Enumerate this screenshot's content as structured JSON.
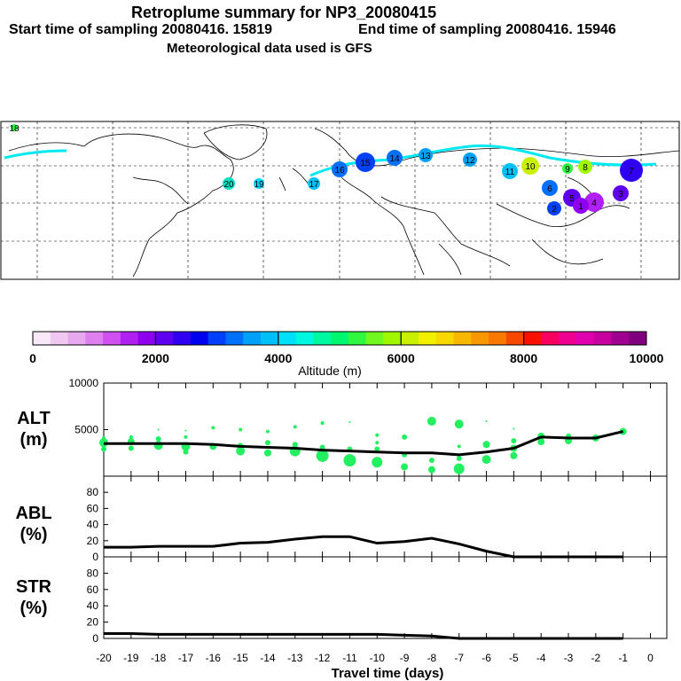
{
  "header": {
    "title": "Retroplume summary for NP3_20080415",
    "start_time": "Start time of sampling 20080416. 15819",
    "end_time": "End time of sampling 20080416. 15946",
    "met_data": "Meteorological data used is GFS"
  },
  "colorbar": {
    "label": "Altitude (m)",
    "ticks": [
      "0",
      "2000",
      "4000",
      "6000",
      "8000",
      "10000"
    ],
    "colors": [
      "#f8e8f8",
      "#f0c8f0",
      "#e8a8f0",
      "#e080f0",
      "#d050f0",
      "#b020f0",
      "#9000f0",
      "#6000f0",
      "#3000f0",
      "#0000f0",
      "#0040f8",
      "#0070f8",
      "#00a0f8",
      "#00c0f8",
      "#00e0f8",
      "#00f8e0",
      "#00f8a0",
      "#00f870",
      "#30f840",
      "#70f820",
      "#a0f800",
      "#c8f000",
      "#f0f000",
      "#f8d800",
      "#f8b800",
      "#f89800",
      "#f87800",
      "#f84800",
      "#f81000",
      "#f80060",
      "#f00090",
      "#e000b0",
      "#c800a0",
      "#a00090",
      "#800080"
    ]
  },
  "map": {
    "labels": [
      "19",
      "20",
      "18",
      "17",
      "16",
      "15",
      "14",
      "13",
      "12",
      "11",
      "10",
      "9",
      "8",
      "7",
      "6",
      "5",
      "4",
      "3",
      "2",
      "1"
    ]
  },
  "chart_data": [
    {
      "type": "scatter",
      "name": "ALT",
      "panel_label": "ALT",
      "panel_unit": "(m)",
      "ylim": [
        0,
        10000
      ],
      "yticks": [
        "10000",
        "5000"
      ],
      "median_line": {
        "x": [
          -20,
          -19,
          -18,
          -17,
          -16,
          -15,
          -14,
          -13,
          -12,
          -11,
          -10,
          -9,
          -8,
          -7,
          -6,
          -5,
          -4,
          -3,
          -2,
          -1
        ],
        "y": [
          3500,
          3500,
          3500,
          3500,
          3400,
          3200,
          3100,
          3000,
          2800,
          2700,
          2600,
          2500,
          2500,
          2300,
          2600,
          3000,
          4200,
          4100,
          4100,
          4800
        ]
      },
      "points": [
        {
          "x": -20,
          "y": 3600,
          "r": 5
        },
        {
          "x": -20,
          "y": 2900,
          "r": 3
        },
        {
          "x": -20,
          "y": 4100,
          "r": 2
        },
        {
          "x": -19,
          "y": 3700,
          "r": 4
        },
        {
          "x": -19,
          "y": 3000,
          "r": 3
        },
        {
          "x": -19,
          "y": 4200,
          "r": 2
        },
        {
          "x": -18,
          "y": 3300,
          "r": 5
        },
        {
          "x": -18,
          "y": 4000,
          "r": 3
        },
        {
          "x": -18,
          "y": 5000,
          "r": 1
        },
        {
          "x": -17,
          "y": 3200,
          "r": 5
        },
        {
          "x": -17,
          "y": 2600,
          "r": 3
        },
        {
          "x": -17,
          "y": 4200,
          "r": 2
        },
        {
          "x": -17,
          "y": 4900,
          "r": 1
        },
        {
          "x": -16,
          "y": 3200,
          "r": 4
        },
        {
          "x": -16,
          "y": 5200,
          "r": 2
        },
        {
          "x": -15,
          "y": 2700,
          "r": 5
        },
        {
          "x": -15,
          "y": 3300,
          "r": 3
        },
        {
          "x": -15,
          "y": 5000,
          "r": 2
        },
        {
          "x": -14,
          "y": 2500,
          "r": 4
        },
        {
          "x": -14,
          "y": 3600,
          "r": 3
        },
        {
          "x": -14,
          "y": 4800,
          "r": 2
        },
        {
          "x": -13,
          "y": 2700,
          "r": 6
        },
        {
          "x": -13,
          "y": 3400,
          "r": 3
        },
        {
          "x": -13,
          "y": 5300,
          "r": 2
        },
        {
          "x": -12,
          "y": 2200,
          "r": 7
        },
        {
          "x": -12,
          "y": 3100,
          "r": 3
        },
        {
          "x": -12,
          "y": 5700,
          "r": 2
        },
        {
          "x": -11,
          "y": 1700,
          "r": 7
        },
        {
          "x": -11,
          "y": 2900,
          "r": 3
        },
        {
          "x": -11,
          "y": 5800,
          "r": 1
        },
        {
          "x": -10,
          "y": 1500,
          "r": 6
        },
        {
          "x": -10,
          "y": 2900,
          "r": 3
        },
        {
          "x": -10,
          "y": 3600,
          "r": 2
        },
        {
          "x": -10,
          "y": 4400,
          "r": 2
        },
        {
          "x": -9,
          "y": 1000,
          "r": 4
        },
        {
          "x": -9,
          "y": 2300,
          "r": 3
        },
        {
          "x": -9,
          "y": 4200,
          "r": 3
        },
        {
          "x": -8,
          "y": 700,
          "r": 4
        },
        {
          "x": -8,
          "y": 1700,
          "r": 3
        },
        {
          "x": -8,
          "y": 5900,
          "r": 5
        },
        {
          "x": -7,
          "y": 800,
          "r": 6
        },
        {
          "x": -7,
          "y": 1900,
          "r": 3
        },
        {
          "x": -7,
          "y": 3200,
          "r": 2
        },
        {
          "x": -7,
          "y": 5600,
          "r": 5
        },
        {
          "x": -6,
          "y": 1800,
          "r": 5
        },
        {
          "x": -6,
          "y": 3400,
          "r": 4
        },
        {
          "x": -6,
          "y": 5900,
          "r": 1
        },
        {
          "x": -5,
          "y": 2200,
          "r": 4
        },
        {
          "x": -5,
          "y": 3000,
          "r": 4
        },
        {
          "x": -5,
          "y": 3800,
          "r": 3
        },
        {
          "x": -5,
          "y": 5100,
          "r": 1
        },
        {
          "x": -4,
          "y": 3700,
          "r": 4
        },
        {
          "x": -4,
          "y": 4300,
          "r": 4
        },
        {
          "x": -3,
          "y": 3800,
          "r": 4
        },
        {
          "x": -3,
          "y": 4300,
          "r": 3
        },
        {
          "x": -2,
          "y": 4100,
          "r": 4
        },
        {
          "x": -1,
          "y": 4800,
          "r": 4
        }
      ]
    },
    {
      "type": "line",
      "name": "ABL",
      "panel_label": "ABL",
      "panel_unit": "(%)",
      "ylim": [
        0,
        100
      ],
      "yticks": [
        "80",
        "60",
        "40",
        "20",
        "0"
      ],
      "x": [
        -20,
        -19,
        -18,
        -17,
        -16,
        -15,
        -14,
        -13,
        -12,
        -11,
        -10,
        -9,
        -8,
        -7,
        -6,
        -5,
        -4,
        -3,
        -2,
        -1
      ],
      "y": [
        12,
        12,
        13,
        13,
        13,
        17,
        18,
        22,
        25,
        25,
        17,
        19,
        23,
        16,
        7,
        0,
        0,
        0,
        0,
        0
      ]
    },
    {
      "type": "line",
      "name": "STR",
      "panel_label": "STR",
      "panel_unit": "(%)",
      "ylim": [
        0,
        100
      ],
      "yticks": [
        "80",
        "60",
        "40",
        "20",
        "0"
      ],
      "x": [
        -20,
        -19,
        -18,
        -17,
        -16,
        -15,
        -14,
        -13,
        -12,
        -11,
        -10,
        -9,
        -8,
        -7,
        -6,
        -5,
        -4,
        -3,
        -2,
        -1
      ],
      "y": [
        6,
        6,
        5,
        5,
        5,
        5,
        5,
        5,
        5,
        5,
        5,
        4,
        3,
        0,
        0,
        0,
        0,
        0,
        0,
        0
      ]
    }
  ],
  "xaxis": {
    "label": "Travel time (days)",
    "ticks": [
      "-20",
      "-19",
      "-18",
      "-17",
      "-16",
      "-15",
      "-14",
      "-13",
      "-12",
      "-11",
      "-10",
      "-9",
      "-8",
      "-7",
      "-6",
      "-5",
      "-4",
      "-3",
      "-2",
      "-1",
      "0"
    ]
  }
}
